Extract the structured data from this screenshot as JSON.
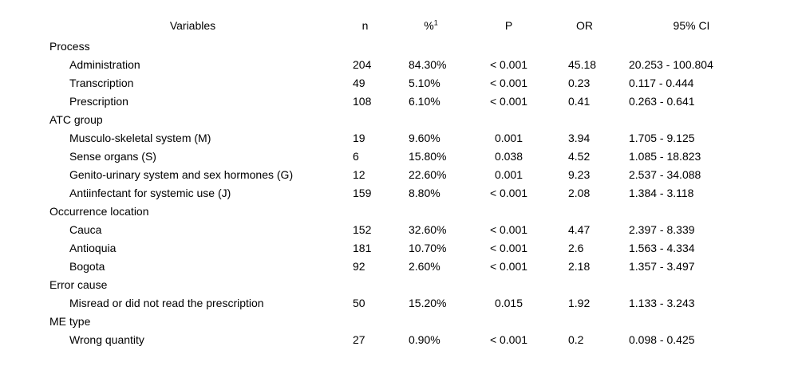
{
  "colors": {
    "background": "#ffffff",
    "text": "#000000",
    "rule": "#000000"
  },
  "table": {
    "headers": {
      "variables": "Variables",
      "n": "n",
      "percent": "%",
      "percent_superscript": "1",
      "p": "P",
      "or": "OR",
      "ci": "95% CI"
    },
    "rows": [
      {
        "type": "section",
        "label": "Process"
      },
      {
        "type": "item",
        "label": "Administration",
        "n": "204",
        "percent": "84.30%",
        "p": "< 0.001",
        "or": "45.18",
        "ci": "20.253 - 100.804"
      },
      {
        "type": "item",
        "label": "Transcription",
        "n": "49",
        "percent": "5.10%",
        "p": "< 0.001",
        "or": "0.23",
        "ci": "0.117 - 0.444"
      },
      {
        "type": "item",
        "label": "Prescription",
        "n": "108",
        "percent": "6.10%",
        "p": "< 0.001",
        "or": "0.41",
        "ci": "0.263 - 0.641"
      },
      {
        "type": "section",
        "label": "ATC group"
      },
      {
        "type": "item",
        "label": "Musculo-skeletal system (M)",
        "n": "19",
        "percent": "9.60%",
        "p": "0.001",
        "or": "3.94",
        "ci": "1.705 - 9.125"
      },
      {
        "type": "item",
        "label": "Sense organs (S)",
        "n": "6",
        "percent": "15.80%",
        "p": "0.038",
        "or": "4.52",
        "ci": "1.085 - 18.823"
      },
      {
        "type": "item",
        "label": "Genito-urinary system and sex hormones (G)",
        "n": "12",
        "percent": "22.60%",
        "p": "0.001",
        "or": "9.23",
        "ci": "2.537 - 34.088"
      },
      {
        "type": "item",
        "label": "Antiinfectant for systemic use (J)",
        "n": "159",
        "percent": "8.80%",
        "p": "< 0.001",
        "or": "2.08",
        "ci": "1.384 - 3.118"
      },
      {
        "type": "section",
        "label": "Occurrence location"
      },
      {
        "type": "item",
        "label": "Cauca",
        "n": "152",
        "percent": "32.60%",
        "p": "< 0.001",
        "or": "4.47",
        "ci": "2.397 - 8.339"
      },
      {
        "type": "item",
        "label": "Antioquia",
        "n": "181",
        "percent": "10.70%",
        "p": "< 0.001",
        "or": "2.6",
        "ci": "1.563 - 4.334"
      },
      {
        "type": "item",
        "label": "Bogota",
        "n": "92",
        "percent": "2.60%",
        "p": "< 0.001",
        "or": "2.18",
        "ci": "1.357 - 3.497"
      },
      {
        "type": "section",
        "label": "Error cause"
      },
      {
        "type": "item",
        "label": "Misread or did not read the prescription",
        "n": "50",
        "percent": "15.20%",
        "p": "0.015",
        "or": "1.92",
        "ci": "1.133 - 3.243"
      },
      {
        "type": "section",
        "label": "ME type"
      },
      {
        "type": "item",
        "label": "Wrong quantity",
        "n": "27",
        "percent": "0.90%",
        "p": "< 0.001",
        "or": "0.2",
        "ci": "0.098 - 0.425"
      }
    ]
  }
}
